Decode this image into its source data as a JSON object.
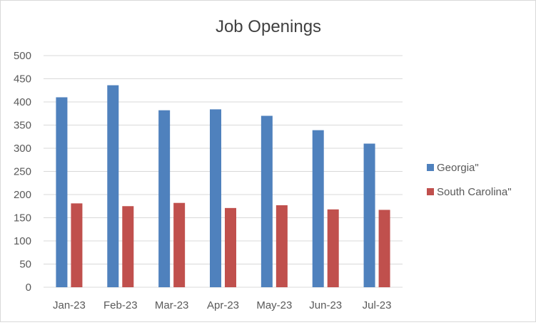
{
  "chart_data": {
    "type": "bar",
    "title": "Job Openings",
    "xlabel": "",
    "ylabel": "",
    "categories": [
      "Jan-23",
      "Feb-23",
      "Mar-23",
      "Apr-23",
      "May-23",
      "Jun-23",
      "Jul-23"
    ],
    "series": [
      {
        "name": "Georgia\"",
        "color": "#4f81bd",
        "values": [
          410,
          436,
          382,
          384,
          370,
          339,
          310
        ]
      },
      {
        "name": "South Carolina\"",
        "color": "#c0504d",
        "values": [
          181,
          175,
          182,
          171,
          177,
          168,
          167
        ]
      }
    ],
    "ylim": [
      0,
      500
    ],
    "yticks": [
      0,
      50,
      100,
      150,
      200,
      250,
      300,
      350,
      400,
      450,
      500
    ],
    "grid": true,
    "legend_position": "right"
  }
}
